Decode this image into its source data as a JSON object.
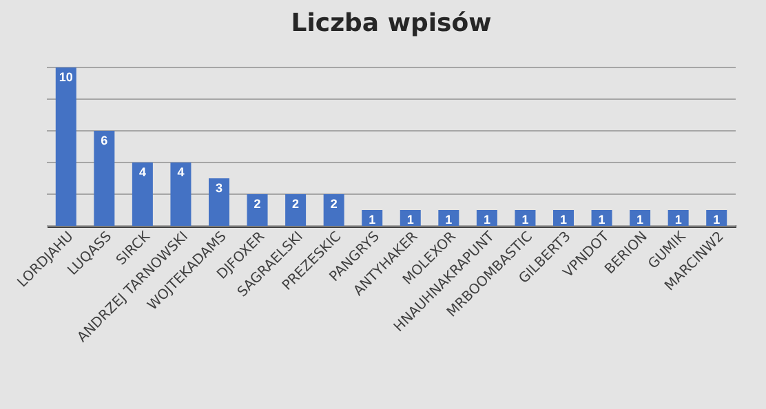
{
  "chart_data": {
    "type": "bar",
    "title": "Liczba wpisów",
    "categories": [
      "LORDJAHU",
      "LUQASS",
      "SIRCK",
      "ANDRZEJ TARNOWSKI",
      "WOJTEKADAMS",
      "DJFOXER",
      "SAGRAELSKI",
      "PREZESKIC",
      "PANGRYS",
      "ANTYHAKER",
      "MOLEXOR",
      "HNAUHNAKRAPUNT",
      "MRBOOMBASTIC",
      "GILBERT3",
      "VPNDOT",
      "BERION",
      "GUMIK",
      "MARCINW2"
    ],
    "values": [
      10,
      6,
      4,
      4,
      3,
      2,
      2,
      2,
      1,
      1,
      1,
      1,
      1,
      1,
      1,
      1,
      1,
      1
    ],
    "color": "#4472c4",
    "ylim": [
      0,
      10
    ],
    "yticks": [
      {
        "value": 0,
        "label": null
      },
      {
        "value": 2,
        "label": null
      },
      {
        "value": 4,
        "label": null
      },
      {
        "value": 6,
        "label": null
      },
      {
        "value": 8,
        "label": null
      },
      {
        "value": 10,
        "label": null
      }
    ],
    "grid": true,
    "data_labels": true,
    "tick_labels": "x"
  }
}
